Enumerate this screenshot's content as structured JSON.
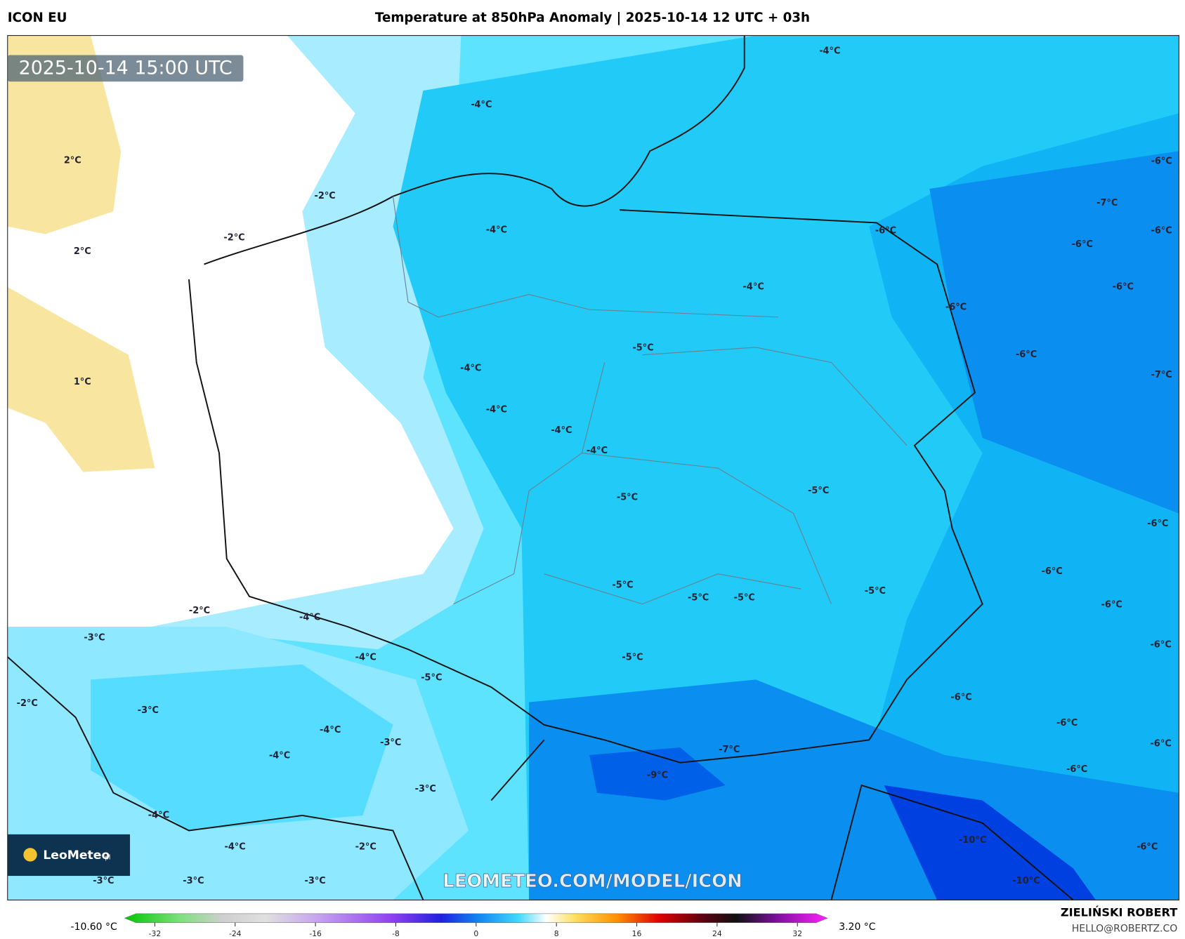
{
  "header": {
    "model": "ICON EU",
    "title": "Temperature at 850hPa Anomaly | 2025-10-14 12 UTC + 03h"
  },
  "map": {
    "timestamp": "2025-10-14 15:00 UTC",
    "watermark": "LEOMETEO.COM/MODEL/ICON",
    "logo": "LeoMeteo",
    "logo_suffix": "pl",
    "labels": [
      "2°C",
      "2°C",
      "1°C",
      "-2°C",
      "-2°C",
      "-4°C",
      "-4°C",
      "-4°C",
      "-4°C",
      "-4°C",
      "-4°C",
      "-4°C",
      "-4°C",
      "-5°C",
      "-5°C",
      "-5°C",
      "-5°C",
      "-5°C",
      "-5°C",
      "-5°C",
      "-5°C",
      "-6°C",
      "-6°C",
      "-6°C",
      "-6°C",
      "-6°C",
      "-7°C",
      "-6°C",
      "-6°C",
      "-7°C",
      "-6°C",
      "-6°C",
      "-6°C",
      "-6°C",
      "-6°C",
      "-6°C",
      "-6°C",
      "-6°C",
      "-7°C",
      "-9°C",
      "-10°C",
      "-10°C",
      "-6°C",
      "-2°C",
      "-4°C",
      "-3°C",
      "-4°C",
      "-5°C",
      "-2°C",
      "-3°C",
      "-4°C",
      "-3°C",
      "-4°C",
      "-3°C",
      "-4°C",
      "-4°C",
      "-2°C",
      "-3°C",
      "-3°C",
      "-3°C"
    ]
  },
  "colorbar": {
    "min_label": "-10.60 °C",
    "max_label": "3.20 °C",
    "lim": [
      -35,
      35
    ],
    "ticks": [
      -32,
      -24,
      -16,
      -8,
      0,
      8,
      16,
      24,
      32
    ]
  },
  "footer": {
    "author": "ZIELIŃSKI ROBERT",
    "email": "HELLO@ROBERTZ.CO"
  }
}
